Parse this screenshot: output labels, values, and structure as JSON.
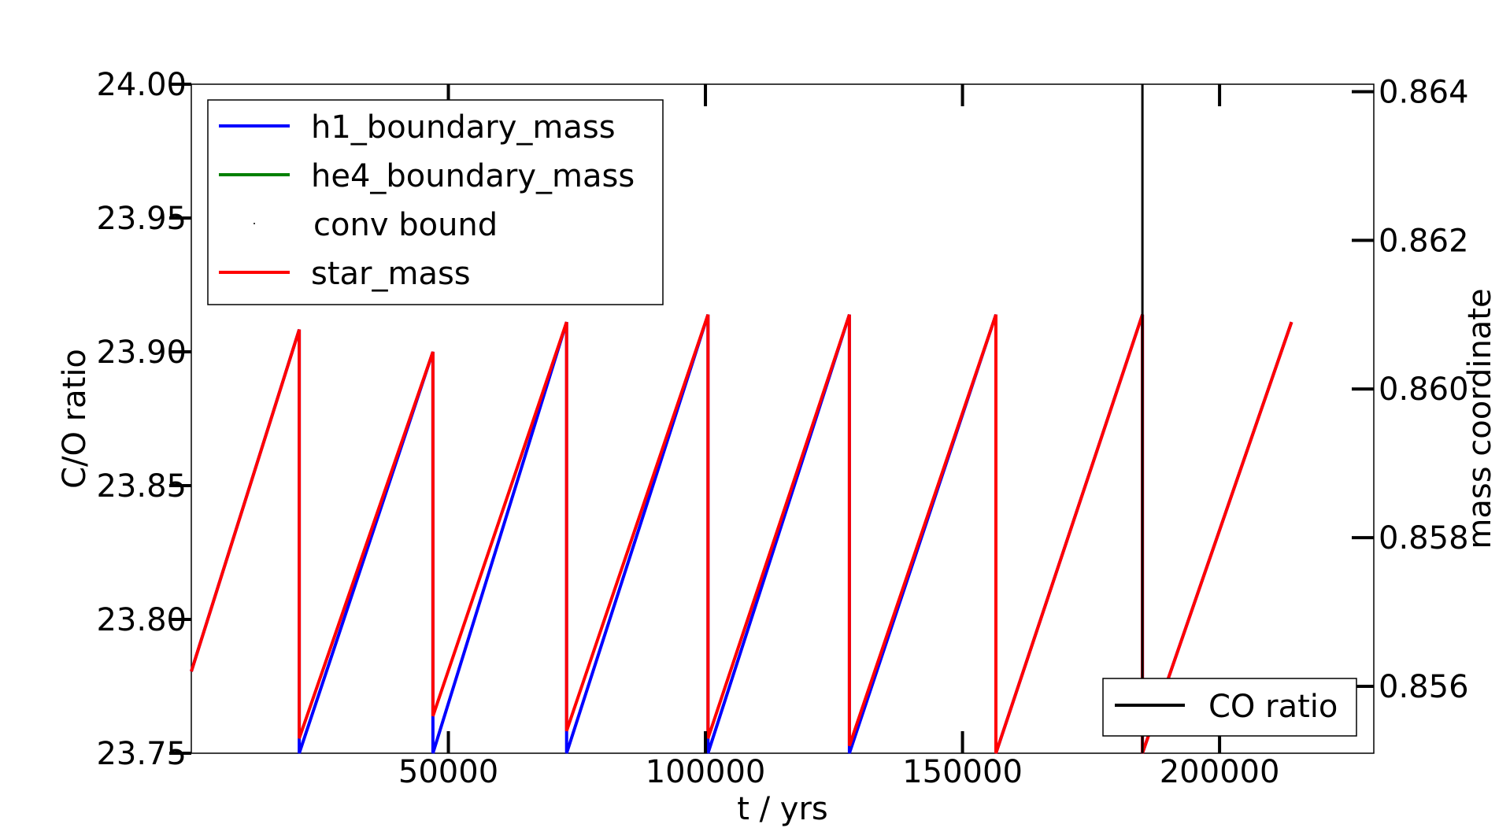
{
  "chart_data": {
    "type": "line",
    "xlabel": "t / yrs",
    "ylabel": "C/O ratio",
    "ylabel_right": "mass coordinate",
    "xlim": [
      0,
      230000
    ],
    "ylim": [
      23.75,
      24.0
    ],
    "ylim_right": [
      0.8551,
      0.8641
    ],
    "x_ticks": [
      50000,
      100000,
      150000,
      200000
    ],
    "x_tick_labels": [
      "50000",
      "100000",
      "150000",
      "200000"
    ],
    "y_ticks": [
      23.75,
      23.8,
      23.85,
      23.9,
      23.95,
      24.0
    ],
    "y_tick_labels": [
      "23.75",
      "23.80",
      "23.85",
      "23.90",
      "23.95",
      "24.00"
    ],
    "y_ticks_right": [
      0.856,
      0.858,
      0.86,
      0.862,
      0.864
    ],
    "y_tick_labels_right": [
      "0.856",
      "0.858",
      "0.860",
      "0.862",
      "0.864"
    ],
    "legend_left": {
      "placement": "upper-left",
      "entries": [
        {
          "label": "h1_boundary_mass",
          "color": "#0000ff",
          "style": "line"
        },
        {
          "label": "he4_boundary_mass",
          "color": "#008000",
          "style": "line"
        },
        {
          "label": "conv bound",
          "color": "#000000",
          "style": "point"
        },
        {
          "label": "star_mass",
          "color": "#ff0000",
          "style": "line"
        }
      ]
    },
    "legend_right": {
      "placement": "lower-right",
      "entries": [
        {
          "label": "CO ratio",
          "color": "#000000",
          "style": "line"
        }
      ]
    },
    "series": [
      {
        "name": "star_mass",
        "axis": "right",
        "color": "#ff0000",
        "x": [
          0,
          21000,
          21000,
          47000,
          47000,
          73000,
          73000,
          100500,
          100500,
          128000,
          128000,
          156500,
          156500,
          185000,
          185000,
          214000
        ],
        "y": [
          0.8562,
          0.8608,
          0.8553,
          0.8605,
          0.8556,
          0.8609,
          0.8554,
          0.861,
          0.8553,
          0.861,
          0.8552,
          0.861,
          0.8551,
          0.861,
          0.8551,
          0.8609
        ]
      },
      {
        "name": "h1_boundary_mass",
        "axis": "right",
        "color": "#0000ff",
        "x": [
          0,
          21000,
          21000,
          47000,
          47000,
          73000,
          73000,
          100500,
          100500,
          128000,
          128000,
          156500,
          156500,
          185000,
          185000,
          214000
        ],
        "y": [
          0.8562,
          0.8608,
          0.8551,
          0.8605,
          0.8551,
          0.8609,
          0.8551,
          0.861,
          0.8551,
          0.861,
          0.8551,
          0.861,
          0.8551,
          0.861,
          0.8551,
          0.8609
        ]
      },
      {
        "name": "CO ratio",
        "axis": "left",
        "color": "#000000",
        "x": [
          185000,
          185000
        ],
        "y": [
          23.75,
          24.0
        ]
      }
    ]
  }
}
